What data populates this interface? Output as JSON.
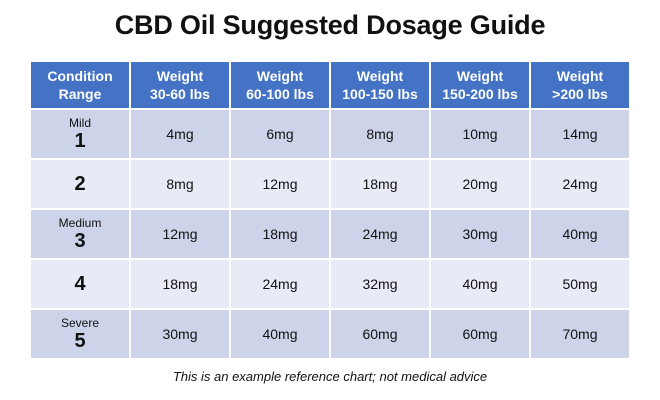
{
  "title": "CBD Oil Suggested Dosage Guide",
  "table": {
    "headers": [
      {
        "line1": "Condition",
        "line2": "Range"
      },
      {
        "line1": "Weight",
        "line2": "30-60 lbs"
      },
      {
        "line1": "Weight",
        "line2": "60-100 lbs"
      },
      {
        "line1": "Weight",
        "line2": "100-150 lbs"
      },
      {
        "line1": "Weight",
        "line2": "150-200 lbs"
      },
      {
        "line1": "Weight",
        "line2": ">200 lbs"
      }
    ],
    "rows": [
      {
        "level_name": "Mild",
        "level": "1",
        "doses": [
          "4mg",
          "6mg",
          "8mg",
          "10mg",
          "14mg"
        ]
      },
      {
        "level_name": "",
        "level": "2",
        "doses": [
          "8mg",
          "12mg",
          "18mg",
          "20mg",
          "24mg"
        ]
      },
      {
        "level_name": "Medium",
        "level": "3",
        "doses": [
          "12mg",
          "18mg",
          "24mg",
          "30mg",
          "40mg"
        ]
      },
      {
        "level_name": "",
        "level": "4",
        "doses": [
          "18mg",
          "24mg",
          "32mg",
          "40mg",
          "50mg"
        ]
      },
      {
        "level_name": "Severe",
        "level": "5",
        "doses": [
          "30mg",
          "40mg",
          "60mg",
          "60mg",
          "70mg"
        ]
      }
    ]
  },
  "footnote": "This is an example reference chart; not medical advice",
  "colors": {
    "header_bg": "#4472c4",
    "row_dark": "#cdd4ea",
    "row_light": "#e8ebf5"
  }
}
